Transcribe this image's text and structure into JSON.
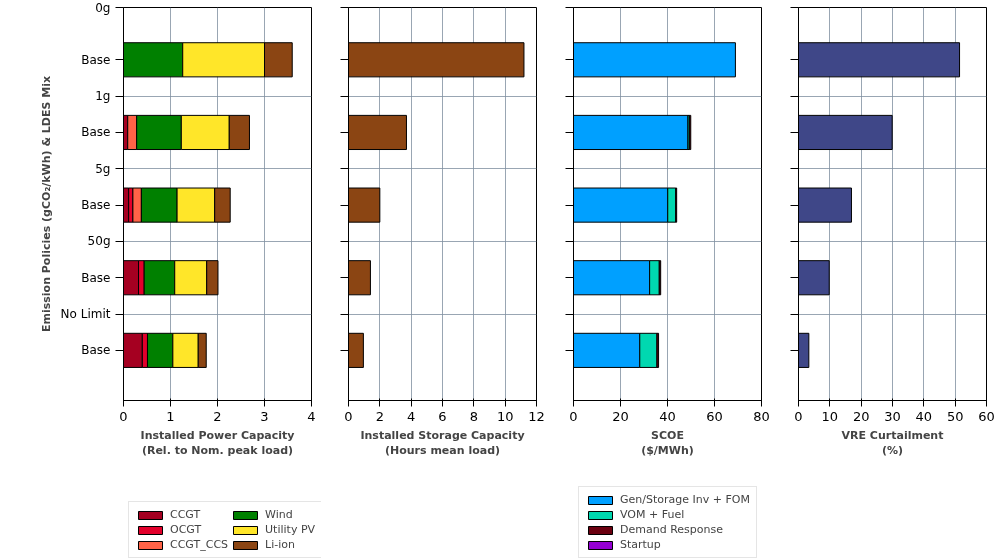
{
  "chart_data": [
    {
      "type": "bar",
      "orientation": "horizontal",
      "stacked": true,
      "categories": [
        "Base",
        "Base",
        "Base",
        "Base",
        "Base"
      ],
      "annotations": [
        "0g",
        "1g",
        "5g",
        "50g",
        "No Limit"
      ],
      "ylabel": "Emission Policies (gCO₂/kWh) & LDES Mix",
      "xlabel": "Installed Power Capacity\n(Rel. to Nom. peak load)",
      "xlim": [
        0,
        4
      ],
      "xticks": [
        0,
        1,
        2,
        3,
        4
      ],
      "grid": true,
      "legend": "bottom",
      "series": [
        {
          "name": "CCGT",
          "color": "#a50021",
          "values": [
            0,
            0.09,
            0.11,
            0.32,
            0.4
          ]
        },
        {
          "name": "OCGT",
          "color": "#e3002b",
          "values": [
            0,
            0,
            0.09,
            0.12,
            0.11
          ]
        },
        {
          "name": "CCGT_CCS",
          "color": "#ff6347",
          "values": [
            0,
            0.19,
            0.18,
            0,
            0
          ]
        },
        {
          "name": "Wind",
          "color": "#008000",
          "values": [
            1.26,
            0.95,
            0.76,
            0.65,
            0.54
          ]
        },
        {
          "name": "Utility PV",
          "color": "#ffe629",
          "values": [
            1.74,
            1.02,
            0.8,
            0.68,
            0.54
          ]
        },
        {
          "name": "Li-ion",
          "color": "#8b4513",
          "values": [
            0.59,
            0.43,
            0.33,
            0.24,
            0.17
          ]
        }
      ]
    },
    {
      "type": "bar",
      "orientation": "horizontal",
      "categories": [
        null,
        null,
        null,
        null,
        null
      ],
      "xlabel": "Installed Storage Capacity\n(Hours mean load)",
      "xlim": [
        0,
        12
      ],
      "xticks": [
        0,
        2,
        4,
        6,
        8,
        10,
        12
      ],
      "grid": true,
      "tick_labels": "x",
      "series": [
        {
          "color": "#8b4513",
          "values": [
            11.2,
            3.7,
            2.0,
            1.4,
            0.95
          ]
        }
      ]
    },
    {
      "type": "bar",
      "orientation": "horizontal",
      "stacked": true,
      "categories": [
        null,
        null,
        null,
        null,
        null
      ],
      "xlabel": "SCOE\n($/MWh)",
      "xlim": [
        0,
        80
      ],
      "xticks": [
        0,
        20,
        40,
        60,
        80
      ],
      "grid": true,
      "tick_labels": "x",
      "legend": "bottom",
      "series": [
        {
          "name": "Gen/Storage Inv + FOM",
          "color": "#00a0ff",
          "values": [
            68.9,
            48.7,
            40.1,
            32.4,
            28.2
          ]
        },
        {
          "name": "VOM + Fuel",
          "color": "#00d8b0",
          "values": [
            0,
            0.6,
            3.4,
            4.1,
            7.3
          ]
        },
        {
          "name": "Demand Response",
          "color": "#6b0010",
          "values": [
            0,
            0.6,
            0.4,
            0.6,
            0.7
          ]
        },
        {
          "name": "Startup",
          "color": "#9400d3",
          "values": [
            0,
            0,
            0,
            0,
            0
          ]
        }
      ]
    },
    {
      "type": "bar",
      "orientation": "horizontal",
      "categories": [
        null,
        null,
        null,
        null,
        null
      ],
      "xlabel": "VRE Curtailment\n(%)",
      "xlim": [
        0,
        60
      ],
      "xticks": [
        0,
        10,
        20,
        30,
        40,
        50,
        60
      ],
      "grid": true,
      "tick_labels": "x",
      "series": [
        {
          "color": "#3f4788",
          "values": [
            51.4,
            29.9,
            16.9,
            9.8,
            3.3
          ]
        }
      ]
    }
  ]
}
